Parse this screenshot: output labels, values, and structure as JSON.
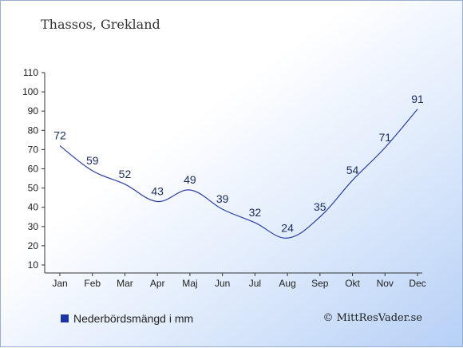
{
  "header": {
    "title": "Thassos, Grekland"
  },
  "legend": {
    "label": "Nederbördsmängd i mm"
  },
  "credit": "© MittResVader.se",
  "chart_data": {
    "type": "line",
    "title": "Thassos, Grekland",
    "xlabel": "",
    "ylabel": "",
    "categories": [
      "Jan",
      "Feb",
      "Mar",
      "Apr",
      "Maj",
      "Jun",
      "Jul",
      "Aug",
      "Sep",
      "Okt",
      "Nov",
      "Dec"
    ],
    "series": [
      {
        "name": "Nederbördsmängd i mm",
        "values": [
          72,
          59,
          52,
          43,
          49,
          39,
          32,
          24,
          35,
          54,
          71,
          91
        ]
      }
    ],
    "y_ticks": [
      10,
      20,
      30,
      40,
      50,
      60,
      70,
      80,
      90,
      100,
      110
    ],
    "ylim": [
      10,
      110
    ],
    "grid": false,
    "legend_position": "bottom-left",
    "data_labels": true,
    "colors": {
      "line": "#2b3fa0",
      "label": "#1a2a5a",
      "axis": "#333333",
      "swatch": "#1b35a3"
    }
  }
}
